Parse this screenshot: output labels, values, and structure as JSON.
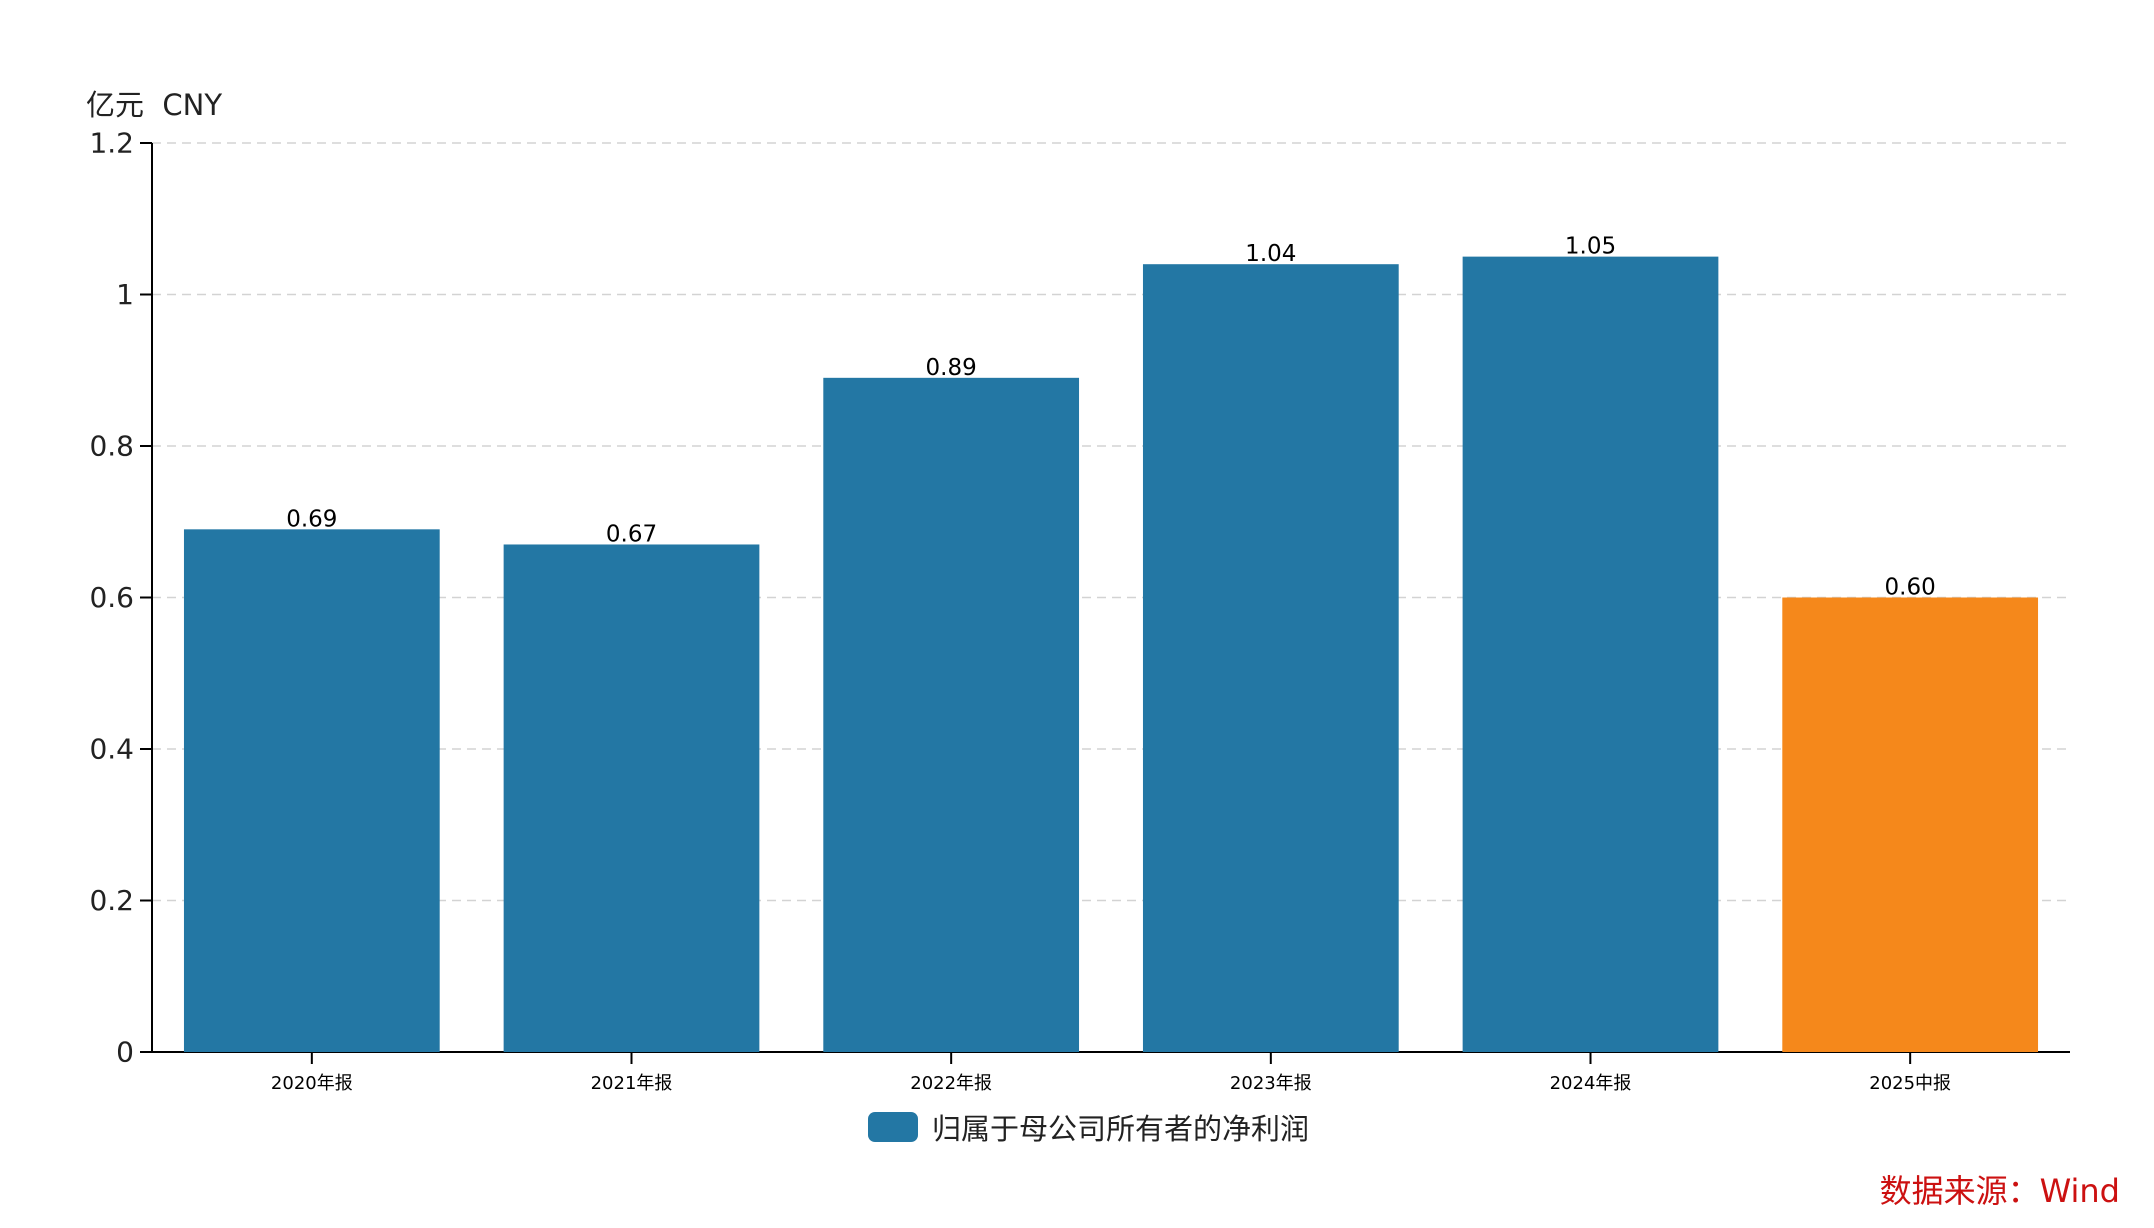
{
  "colors": {
    "primary_bar": "#2377a4",
    "highlight_bar": "#f5881b",
    "axis": "#000000",
    "grid": "#d3d3d3",
    "text": "#222222",
    "source_text": "#cc1111"
  },
  "unit_label": "亿元  CNY",
  "legend": {
    "label": "归属于母公司所有者的净利润"
  },
  "source_text": "数据来源：Wind",
  "chart_data": {
    "type": "bar",
    "categories": [
      "2020年报",
      "2021年报",
      "2022年报",
      "2023年报",
      "2024年报",
      "2025中报"
    ],
    "series": [
      {
        "name": "归属于母公司所有者的净利润",
        "values": [
          0.69,
          0.67,
          0.89,
          1.04,
          1.05,
          0.6
        ],
        "value_labels": [
          "0.69",
          "0.67",
          "0.89",
          "1.04",
          "1.05",
          "0.60"
        ]
      }
    ],
    "highlight_index": 5,
    "ylim": [
      0,
      1.2
    ],
    "yticks": [
      0,
      0.2,
      0.4,
      0.6,
      0.8,
      1,
      1.2
    ],
    "ytick_labels": [
      "0",
      "0.2",
      "0.4",
      "0.6",
      "0.8",
      "1",
      "1.2"
    ],
    "grid": true,
    "legend_position": "bottom"
  }
}
